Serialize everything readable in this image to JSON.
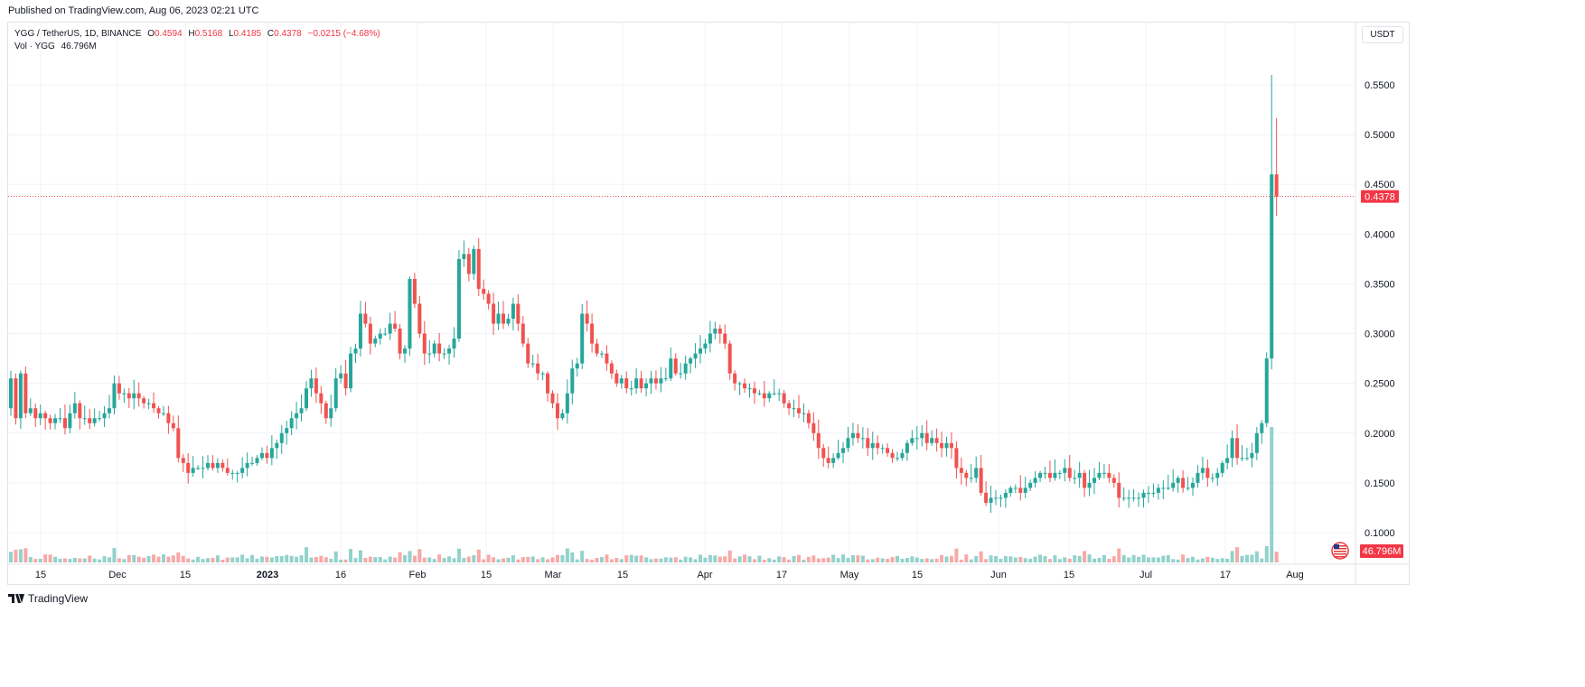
{
  "header": {
    "published": "Published on TradingView.com, Aug 06, 2023 02:21 UTC"
  },
  "legend": {
    "symbol": "YGG / TetherUS, 1D, BINANCE",
    "o_label": "O",
    "o_value": "0.4594",
    "h_label": "H",
    "h_value": "0.5168",
    "l_label": "L",
    "l_value": "0.4185",
    "c_label": "C",
    "c_value": "0.4378",
    "change": "−0.0215 (−4.68%)",
    "vol_label": "Vol · YGG",
    "vol_value": "46.796M"
  },
  "currency_button": "USDT",
  "footer": {
    "brand": "TradingView",
    "logo": "tv-logo-icon"
  },
  "colors": {
    "up": "#26a69a",
    "down": "#ef5350",
    "up_vol": "#92d2cc",
    "down_vol": "#f7a9a7",
    "last": "#f23645"
  },
  "chart_data": {
    "type": "candlestick",
    "price_axis_ticks": [
      "0.5500",
      "0.5000",
      "0.4500",
      "0.4000",
      "0.3500",
      "0.3000",
      "0.2500",
      "0.2000",
      "0.1500",
      "0.1000"
    ],
    "last_price_label": "0.4378",
    "volume_label": "46.796M",
    "ylim": [
      0.085,
      0.575
    ],
    "x_axis_labels": [
      "15",
      "Dec",
      "15",
      "2023",
      "16",
      "Feb",
      "15",
      "Mar",
      "15",
      "Apr",
      "17",
      "May",
      "15",
      "Jun",
      "15",
      "Jul",
      "17",
      "Aug"
    ],
    "date_range": [
      "2022-11-06",
      "2023-08-06"
    ],
    "closes": [
      0.255,
      0.215,
      0.26,
      0.22,
      0.225,
      0.215,
      0.22,
      0.215,
      0.21,
      0.215,
      0.215,
      0.205,
      0.22,
      0.23,
      0.215,
      0.215,
      0.21,
      0.215,
      0.215,
      0.22,
      0.225,
      0.25,
      0.24,
      0.24,
      0.235,
      0.24,
      0.235,
      0.23,
      0.23,
      0.225,
      0.22,
      0.22,
      0.21,
      0.205,
      0.175,
      0.17,
      0.16,
      0.165,
      0.165,
      0.165,
      0.17,
      0.165,
      0.17,
      0.165,
      0.16,
      0.16,
      0.16,
      0.165,
      0.17,
      0.17,
      0.175,
      0.18,
      0.175,
      0.185,
      0.19,
      0.2,
      0.205,
      0.215,
      0.22,
      0.225,
      0.245,
      0.255,
      0.24,
      0.23,
      0.215,
      0.225,
      0.255,
      0.26,
      0.245,
      0.28,
      0.285,
      0.32,
      0.31,
      0.29,
      0.295,
      0.3,
      0.3,
      0.31,
      0.305,
      0.28,
      0.285,
      0.355,
      0.33,
      0.3,
      0.28,
      0.28,
      0.29,
      0.28,
      0.28,
      0.285,
      0.295,
      0.375,
      0.38,
      0.36,
      0.385,
      0.345,
      0.34,
      0.33,
      0.31,
      0.32,
      0.31,
      0.315,
      0.33,
      0.31,
      0.29,
      0.27,
      0.27,
      0.26,
      0.26,
      0.24,
      0.23,
      0.215,
      0.22,
      0.24,
      0.265,
      0.27,
      0.32,
      0.31,
      0.29,
      0.28,
      0.28,
      0.27,
      0.26,
      0.25,
      0.255,
      0.245,
      0.245,
      0.255,
      0.245,
      0.25,
      0.255,
      0.25,
      0.255,
      0.255,
      0.275,
      0.26,
      0.26,
      0.27,
      0.275,
      0.28,
      0.285,
      0.29,
      0.3,
      0.305,
      0.3,
      0.29,
      0.26,
      0.25,
      0.25,
      0.245,
      0.245,
      0.24,
      0.24,
      0.235,
      0.24,
      0.24,
      0.24,
      0.23,
      0.225,
      0.225,
      0.22,
      0.22,
      0.21,
      0.2,
      0.185,
      0.175,
      0.17,
      0.175,
      0.18,
      0.185,
      0.195,
      0.2,
      0.195,
      0.195,
      0.185,
      0.19,
      0.185,
      0.185,
      0.18,
      0.175,
      0.175,
      0.18,
      0.19,
      0.195,
      0.195,
      0.2,
      0.19,
      0.195,
      0.19,
      0.185,
      0.19,
      0.185,
      0.165,
      0.16,
      0.155,
      0.155,
      0.165,
      0.14,
      0.13,
      0.135,
      0.135,
      0.135,
      0.14,
      0.145,
      0.145,
      0.14,
      0.145,
      0.15,
      0.155,
      0.16,
      0.16,
      0.155,
      0.16,
      0.16,
      0.165,
      0.155,
      0.155,
      0.16,
      0.145,
      0.15,
      0.155,
      0.16,
      0.16,
      0.155,
      0.15,
      0.135,
      0.135,
      0.135,
      0.135,
      0.135,
      0.14,
      0.14,
      0.14,
      0.145,
      0.145,
      0.145,
      0.15,
      0.155,
      0.145,
      0.145,
      0.15,
      0.16,
      0.165,
      0.155,
      0.155,
      0.16,
      0.17,
      0.175,
      0.195,
      0.175,
      0.175,
      0.175,
      0.18,
      0.2,
      0.21,
      0.275,
      0.46,
      0.4378
    ]
  }
}
